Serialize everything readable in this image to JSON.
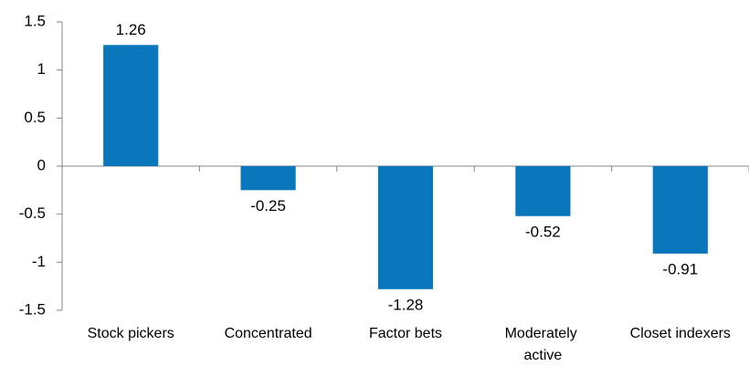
{
  "chart_data": {
    "type": "bar",
    "categories": [
      "Stock pickers",
      "Concentrated",
      "Factor bets",
      "Moderately active",
      "Closet indexers"
    ],
    "values": [
      1.26,
      -0.25,
      -1.28,
      -0.52,
      -0.91
    ],
    "color": "#0a77bd",
    "ylim": [
      -1.5,
      1.5
    ],
    "yticks": [
      -1.5,
      -1,
      -0.5,
      0,
      0.5,
      1,
      1.5
    ],
    "grid": false
  }
}
